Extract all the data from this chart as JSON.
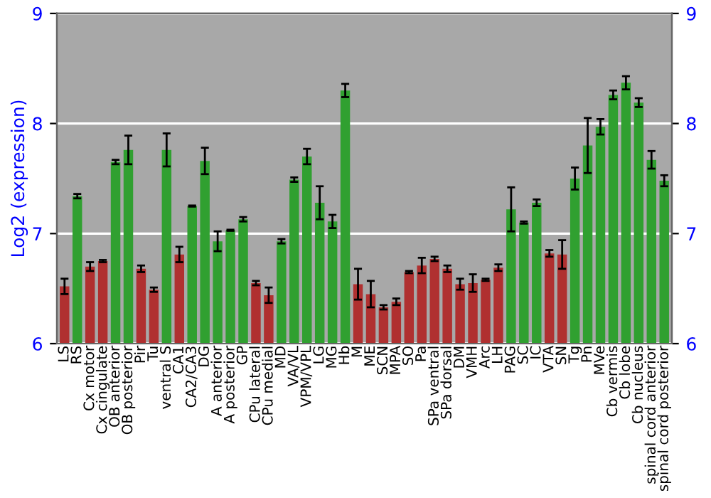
{
  "chart_data": {
    "type": "bar",
    "ylabel": "Log2 (expression)",
    "categories": [
      "LS",
      "RS",
      "Cx motor",
      "Cx cingulate",
      "OB anterior",
      "OB posterior",
      "Pir",
      "Tu",
      "ventral S",
      "CA1",
      "CA2/CA3",
      "DG",
      "A anterior",
      "A posterior",
      "GP",
      "CPu lateral",
      "CPu medial",
      "MD",
      "VA/VL",
      "VPM/VPL",
      "LG",
      "MG",
      "Hb",
      "M",
      "ME",
      "SCN",
      "MPA",
      "SO",
      "Pa",
      "SPa ventral",
      "SPa dorsal",
      "DM",
      "VMH",
      "Arc",
      "LH",
      "PAG",
      "SC",
      "IC",
      "VTA",
      "SN",
      "Tg",
      "Pn",
      "MVe",
      "Cb vermis",
      "Cb lobe",
      "Cb nucleus",
      "spinal cord anterior",
      "spinal cord posterior"
    ],
    "values": [
      6.52,
      7.34,
      6.7,
      6.75,
      7.65,
      7.76,
      6.68,
      6.49,
      7.76,
      6.81,
      7.25,
      7.66,
      6.93,
      7.03,
      7.13,
      6.55,
      6.44,
      6.93,
      7.49,
      7.7,
      7.28,
      7.11,
      8.3,
      6.54,
      6.45,
      6.33,
      6.38,
      6.65,
      6.71,
      6.77,
      6.68,
      6.54,
      6.55,
      6.58,
      6.69,
      7.22,
      7.1,
      7.28,
      6.82,
      6.81,
      7.5,
      7.8,
      7.97,
      8.26,
      8.37,
      8.19,
      7.67,
      7.48
    ],
    "errors": [
      0.07,
      0.02,
      0.04,
      0.01,
      0.02,
      0.13,
      0.03,
      0.02,
      0.15,
      0.07,
      0.005,
      0.12,
      0.09,
      0.005,
      0.02,
      0.02,
      0.07,
      0.02,
      0.02,
      0.07,
      0.15,
      0.06,
      0.06,
      0.14,
      0.12,
      0.02,
      0.03,
      0.01,
      0.07,
      0.02,
      0.03,
      0.05,
      0.08,
      0.01,
      0.03,
      0.2,
      0.01,
      0.03,
      0.03,
      0.13,
      0.1,
      0.25,
      0.07,
      0.04,
      0.06,
      0.04,
      0.08,
      0.05
    ],
    "colors": [
      "#b03030",
      "#30a030",
      "#b03030",
      "#b03030",
      "#30a030",
      "#30a030",
      "#b03030",
      "#b03030",
      "#30a030",
      "#b03030",
      "#30a030",
      "#30a030",
      "#30a030",
      "#30a030",
      "#30a030",
      "#b03030",
      "#b03030",
      "#30a030",
      "#30a030",
      "#30a030",
      "#30a030",
      "#30a030",
      "#30a030",
      "#b03030",
      "#b03030",
      "#b03030",
      "#b03030",
      "#b03030",
      "#b03030",
      "#b03030",
      "#b03030",
      "#b03030",
      "#b03030",
      "#b03030",
      "#b03030",
      "#30a030",
      "#30a030",
      "#30a030",
      "#b03030",
      "#b03030",
      "#30a030",
      "#30a030",
      "#30a030",
      "#30a030",
      "#30a030",
      "#30a030",
      "#30a030",
      "#30a030"
    ],
    "ylim": [
      6,
      9
    ],
    "yticks": [
      6,
      7,
      8,
      9
    ],
    "y2lim": [
      6,
      9
    ],
    "y2ticks": [
      6,
      7,
      8,
      9
    ],
    "grid": "y"
  }
}
